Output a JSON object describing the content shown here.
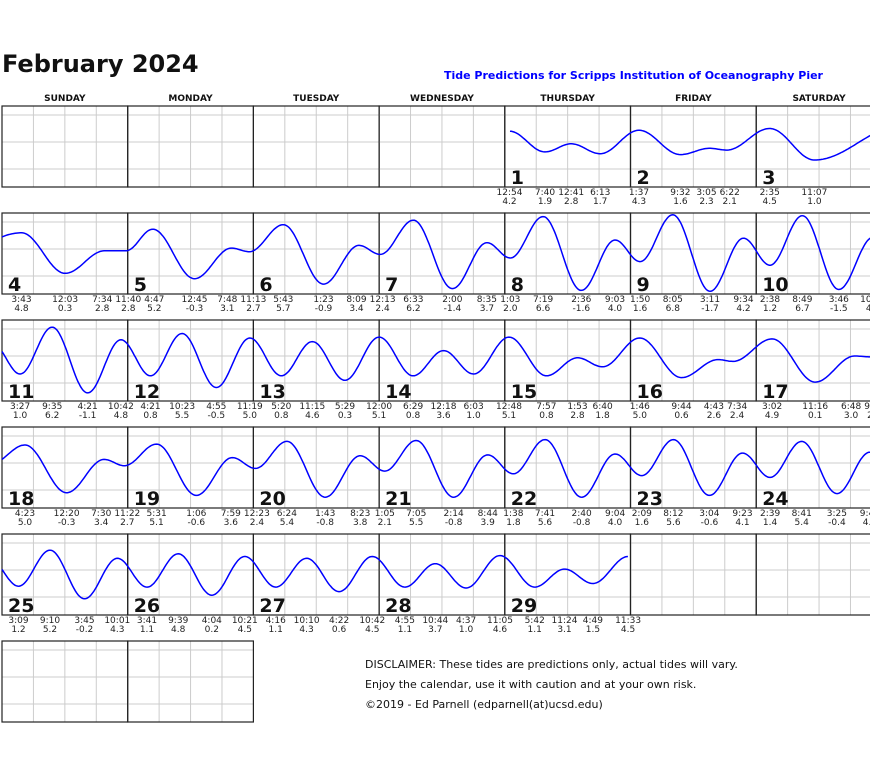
{
  "title": "February 2024",
  "subtitle": "Tide Predictions for Scripps Institution of Oceanography Pier",
  "weekdays": [
    "SUNDAY",
    "MONDAY",
    "TUESDAY",
    "WEDNESDAY",
    "THURSDAY",
    "FRIDAY",
    "SATURDAY"
  ],
  "disclaimer": [
    "DISCLAIMER: These tides are predictions only, actual tides will vary.",
    "Enjoy the calendar, use it with caution and at your own risk.",
    "©2019 - Ed Parnell (edparnell(at)ucsd.edu)"
  ],
  "colors": {
    "curve": "#0000ff",
    "subtitle": "#0000ff",
    "grid": "#cccccc",
    "border": "#222222"
  },
  "chart_data": {
    "type": "line",
    "ylim": [
      -2,
      7
    ],
    "y_gridlines": [
      0,
      3,
      6
    ],
    "x_gridlines_hours": [
      6,
      12,
      18
    ],
    "first_weekday": "THURSDAY",
    "days": [
      {
        "day": "1",
        "tides": [
          {
            "t": "12:54",
            "h": "4.2"
          },
          {
            "t": "7:40",
            "h": "1.9"
          },
          {
            "t": "12:41",
            "h": "2.8"
          },
          {
            "t": "6:13",
            "h": "1.7"
          }
        ]
      },
      {
        "day": "2",
        "tides": [
          {
            "t": "1:37",
            "h": "4.3"
          },
          {
            "t": "9:32",
            "h": "1.6"
          },
          {
            "t": "3:05",
            "h": "2.3"
          },
          {
            "t": "6:22",
            "h": "2.1"
          }
        ]
      },
      {
        "day": "3",
        "tides": [
          {
            "t": "2:35",
            "h": "4.5"
          },
          {
            "t": "11:07",
            "h": "1.0"
          }
        ]
      },
      {
        "day": "4",
        "tides": [
          {
            "t": "3:43",
            "h": "4.8"
          },
          {
            "t": "12:03",
            "h": "0.3"
          },
          {
            "t": "7:34",
            "h": "2.8"
          },
          {
            "t": "11:40",
            "h": "2.8"
          }
        ]
      },
      {
        "day": "5",
        "tides": [
          {
            "t": "4:47",
            "h": "5.2"
          },
          {
            "t": "12:45",
            "h": "-0.3"
          },
          {
            "t": "7:48",
            "h": "3.1"
          },
          {
            "t": "11:13",
            "h": "2.7"
          }
        ]
      },
      {
        "day": "6",
        "tides": [
          {
            "t": "5:43",
            "h": "5.7"
          },
          {
            "t": "1:23",
            "h": "-0.9"
          },
          {
            "t": "8:09",
            "h": "3.4"
          }
        ]
      },
      {
        "day": "7",
        "tides": [
          {
            "t": "12:13",
            "h": "2.4"
          },
          {
            "t": "6:33",
            "h": "6.2"
          },
          {
            "t": "2:00",
            "h": "-1.4"
          },
          {
            "t": "8:35",
            "h": "3.7"
          }
        ]
      },
      {
        "day": "8",
        "tides": [
          {
            "t": "1:03",
            "h": "2.0"
          },
          {
            "t": "7:19",
            "h": "6.6"
          },
          {
            "t": "2:36",
            "h": "-1.6"
          },
          {
            "t": "9:03",
            "h": "4.0"
          }
        ]
      },
      {
        "day": "9",
        "tides": [
          {
            "t": "1:50",
            "h": "1.6"
          },
          {
            "t": "8:05",
            "h": "6.8"
          },
          {
            "t": "3:11",
            "h": "-1.7"
          },
          {
            "t": "9:34",
            "h": "4.2"
          }
        ]
      },
      {
        "day": "10",
        "tides": [
          {
            "t": "2:38",
            "h": "1.2"
          },
          {
            "t": "8:49",
            "h": "6.7"
          },
          {
            "t": "3:46",
            "h": "-1.5"
          },
          {
            "t": "10:19",
            "h": "4.3"
          }
        ]
      },
      {
        "day": "11",
        "tides": [
          {
            "t": "3:27",
            "h": "1.0"
          },
          {
            "t": "9:35",
            "h": "6.2"
          },
          {
            "t": "4:21",
            "h": "-1.1"
          },
          {
            "t": "10:42",
            "h": "4.8"
          }
        ]
      },
      {
        "day": "12",
        "tides": [
          {
            "t": "4:21",
            "h": "0.8"
          },
          {
            "t": "10:23",
            "h": "5.5"
          },
          {
            "t": "4:55",
            "h": "-0.5"
          },
          {
            "t": "11:19",
            "h": "5.0"
          }
        ]
      },
      {
        "day": "13",
        "tides": [
          {
            "t": "5:20",
            "h": "0.8"
          },
          {
            "t": "11:15",
            "h": "4.6"
          },
          {
            "t": "5:29",
            "h": "0.3"
          }
        ]
      },
      {
        "day": "14",
        "tides": [
          {
            "t": "12:00",
            "h": "5.1"
          },
          {
            "t": "6:29",
            "h": "0.8"
          },
          {
            "t": "12:18",
            "h": "3.6"
          },
          {
            "t": "6:03",
            "h": "1.0"
          }
        ]
      },
      {
        "day": "15",
        "tides": [
          {
            "t": "12:48",
            "h": "5.1"
          },
          {
            "t": "7:57",
            "h": "0.8"
          },
          {
            "t": "1:53",
            "h": "2.8"
          },
          {
            "t": "6:40",
            "h": "1.8"
          }
        ]
      },
      {
        "day": "16",
        "tides": [
          {
            "t": "1:46",
            "h": "5.0"
          },
          {
            "t": "9:44",
            "h": "0.6"
          },
          {
            "t": "4:43",
            "h": "2.6"
          },
          {
            "t": "7:34",
            "h": "2.4"
          }
        ]
      },
      {
        "day": "17",
        "tides": [
          {
            "t": "3:02",
            "h": "4.9"
          },
          {
            "t": "11:16",
            "h": "0.1"
          },
          {
            "t": "6:48",
            "h": "3.0"
          },
          {
            "t": "9:53",
            "h": "2.9"
          }
        ]
      },
      {
        "day": "18",
        "tides": [
          {
            "t": "4:23",
            "h": "5.0"
          },
          {
            "t": "12:20",
            "h": "-0.3"
          },
          {
            "t": "7:30",
            "h": "3.4"
          },
          {
            "t": "11:22",
            "h": "2.7"
          }
        ]
      },
      {
        "day": "19",
        "tides": [
          {
            "t": "5:31",
            "h": "5.1"
          },
          {
            "t": "1:06",
            "h": "-0.6"
          },
          {
            "t": "7:59",
            "h": "3.6"
          }
        ]
      },
      {
        "day": "20",
        "tides": [
          {
            "t": "12:23",
            "h": "2.4"
          },
          {
            "t": "6:24",
            "h": "5.4"
          },
          {
            "t": "1:43",
            "h": "-0.8"
          },
          {
            "t": "8:23",
            "h": "3.8"
          }
        ]
      },
      {
        "day": "21",
        "tides": [
          {
            "t": "1:05",
            "h": "2.1"
          },
          {
            "t": "7:05",
            "h": "5.5"
          },
          {
            "t": "2:14",
            "h": "-0.8"
          },
          {
            "t": "8:44",
            "h": "3.9"
          }
        ]
      },
      {
        "day": "22",
        "tides": [
          {
            "t": "1:38",
            "h": "1.8"
          },
          {
            "t": "7:41",
            "h": "5.6"
          },
          {
            "t": "2:40",
            "h": "-0.8"
          },
          {
            "t": "9:04",
            "h": "4.0"
          }
        ]
      },
      {
        "day": "23",
        "tides": [
          {
            "t": "2:09",
            "h": "1.6"
          },
          {
            "t": "8:12",
            "h": "5.6"
          },
          {
            "t": "3:04",
            "h": "-0.6"
          },
          {
            "t": "9:23",
            "h": "4.1"
          }
        ]
      },
      {
        "day": "24",
        "tides": [
          {
            "t": "2:39",
            "h": "1.4"
          },
          {
            "t": "8:41",
            "h": "5.4"
          },
          {
            "t": "3:25",
            "h": "-0.4"
          },
          {
            "t": "9:42",
            "h": "4.2"
          }
        ]
      },
      {
        "day": "25",
        "tides": [
          {
            "t": "3:09",
            "h": "1.2"
          },
          {
            "t": "9:10",
            "h": "5.2"
          },
          {
            "t": "3:45",
            "h": "-0.2"
          },
          {
            "t": "10:01",
            "h": "4.3"
          }
        ]
      },
      {
        "day": "26",
        "tides": [
          {
            "t": "3:41",
            "h": "1.1"
          },
          {
            "t": "9:39",
            "h": "4.8"
          },
          {
            "t": "4:04",
            "h": "0.2"
          },
          {
            "t": "10:21",
            "h": "4.5"
          }
        ]
      },
      {
        "day": "27",
        "tides": [
          {
            "t": "4:16",
            "h": "1.1"
          },
          {
            "t": "10:10",
            "h": "4.3"
          },
          {
            "t": "4:22",
            "h": "0.6"
          },
          {
            "t": "10:42",
            "h": "4.5"
          }
        ]
      },
      {
        "day": "28",
        "tides": [
          {
            "t": "4:55",
            "h": "1.1"
          },
          {
            "t": "10:44",
            "h": "3.7"
          },
          {
            "t": "4:37",
            "h": "1.0"
          },
          {
            "t": "11:05",
            "h": "4.6"
          }
        ]
      },
      {
        "day": "29",
        "tides": [
          {
            "t": "5:42",
            "h": "1.1"
          },
          {
            "t": "11:24",
            "h": "3.1"
          },
          {
            "t": "4:49",
            "h": "1.5"
          },
          {
            "t": "11:33",
            "h": "4.5"
          }
        ]
      }
    ]
  }
}
